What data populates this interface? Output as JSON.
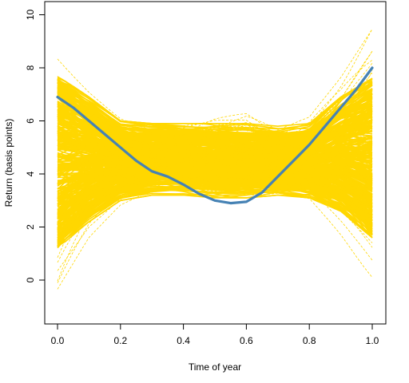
{
  "chart_data": {
    "type": "line",
    "title": "",
    "xlabel": "Time of year",
    "ylabel": "Return (basis points)",
    "xlim": [
      0,
      1
    ],
    "ylim": [
      -1.3,
      10.2
    ],
    "x_ticks": [
      {
        "value": 0.0,
        "label": "0.0"
      },
      {
        "value": 0.2,
        "label": "0.2"
      },
      {
        "value": 0.4,
        "label": "0.4"
      },
      {
        "value": 0.6,
        "label": "0.6"
      },
      {
        "value": 0.8,
        "label": "0.8"
      },
      {
        "value": 1.0,
        "label": "1.0"
      }
    ],
    "y_ticks": [
      {
        "value": 0,
        "label": "0"
      },
      {
        "value": 2,
        "label": "2"
      },
      {
        "value": 4,
        "label": "4"
      },
      {
        "value": 6,
        "label": "6"
      },
      {
        "value": 8,
        "label": "8"
      },
      {
        "value": 10,
        "label": "10"
      }
    ],
    "grid": false,
    "legend": "none",
    "colors": {
      "simulations": "#FFD700",
      "actual": "#4682B4"
    },
    "simulation_band": {
      "description_of_spread": "many simulated yearly paths",
      "x": [
        0.0,
        0.1,
        0.2,
        0.3,
        0.4,
        0.5,
        0.6,
        0.7,
        0.8,
        0.9,
        1.0
      ],
      "lower": [
        -1.2,
        1.0,
        2.4,
        3.0,
        3.0,
        2.6,
        2.6,
        3.0,
        2.9,
        1.6,
        0.1
      ],
      "upper": [
        8.6,
        7.4,
        6.4,
        6.0,
        6.4,
        6.9,
        7.0,
        6.0,
        6.4,
        8.0,
        10.0
      ],
      "core_lower": [
        1.2,
        2.2,
        3.0,
        3.2,
        3.2,
        3.1,
        3.1,
        3.2,
        3.1,
        2.6,
        1.6
      ],
      "core_upper": [
        7.7,
        6.9,
        6.0,
        5.9,
        5.9,
        5.9,
        5.9,
        5.8,
        5.9,
        6.9,
        7.6
      ]
    },
    "series": [
      {
        "x": [
          0.0,
          0.05,
          0.1,
          0.15,
          0.2,
          0.25,
          0.3,
          0.35,
          0.4,
          0.45,
          0.5,
          0.55,
          0.6,
          0.65,
          0.7,
          0.75,
          0.8,
          0.85,
          0.9,
          0.95,
          1.0
        ],
        "values": [
          6.9,
          6.5,
          6.0,
          5.5,
          5.0,
          4.5,
          4.1,
          3.9,
          3.6,
          3.25,
          3.0,
          2.9,
          2.95,
          3.3,
          3.9,
          4.5,
          5.1,
          5.8,
          6.5,
          7.2,
          8.0
        ]
      }
    ]
  }
}
